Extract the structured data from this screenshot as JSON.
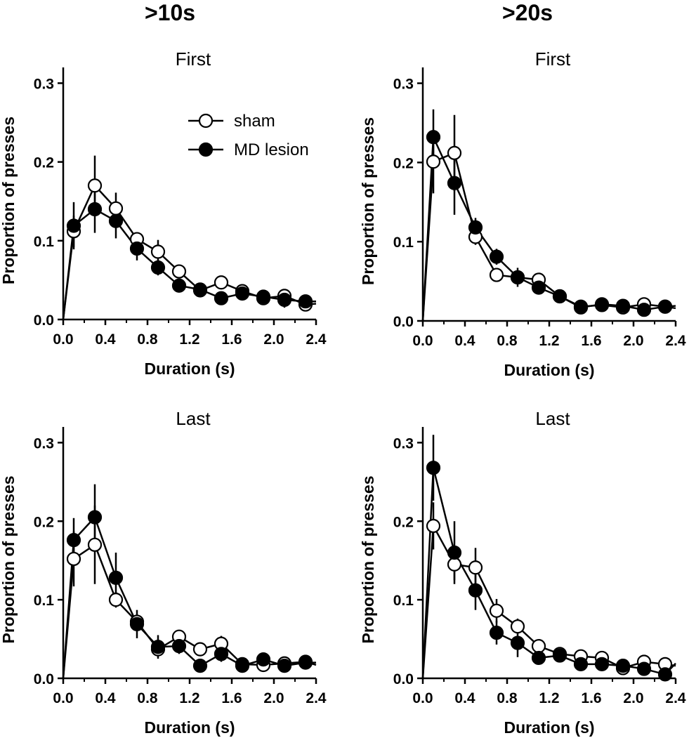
{
  "column_titles": [
    ">10s",
    ">20s"
  ],
  "legend": {
    "sham": "sham",
    "lesion": "MD lesion"
  },
  "chart_data": [
    {
      "type": "line",
      "column": ">10s",
      "title": "First",
      "xlabel": "Duration (s)",
      "ylabel": "Proportion of presses",
      "xlim": [
        0,
        2.4
      ],
      "ylim": [
        0,
        0.3
      ],
      "xticks": [
        "0.0",
        "0.4",
        "0.8",
        "1.2",
        "1.6",
        "2.0",
        "2.4"
      ],
      "yticks": [
        "0.0",
        "0.1",
        "0.2",
        "0.3"
      ],
      "x": [
        0.1,
        0.3,
        0.5,
        0.7,
        0.9,
        1.1,
        1.3,
        1.5,
        1.7,
        1.9,
        2.1,
        2.3
      ],
      "series": [
        {
          "name": "sham",
          "marker": "open",
          "values": [
            0.112,
            0.17,
            0.141,
            0.102,
            0.086,
            0.061,
            0.037,
            0.047,
            0.036,
            0.027,
            0.03,
            0.019
          ],
          "errors": [
            0.02,
            0.038,
            0.02,
            0.008,
            0.015,
            0.008,
            0.004,
            0.008,
            0.005,
            0.004,
            0.006,
            0.004
          ]
        },
        {
          "name": "MD lesion",
          "marker": "filled",
          "values": [
            0.119,
            0.14,
            0.125,
            0.09,
            0.066,
            0.043,
            0.038,
            0.027,
            0.033,
            0.029,
            0.025,
            0.023
          ],
          "errors": [
            0.03,
            0.03,
            0.022,
            0.015,
            0.01,
            0.006,
            0.004,
            0.004,
            0.005,
            0.004,
            0.01,
            0.004
          ]
        }
      ],
      "origin_point": [
        0,
        0
      ],
      "end_point": [
        2.4,
        0.02
      ]
    },
    {
      "type": "line",
      "column": ">20s",
      "title": "First",
      "xlabel": "Duration (s)",
      "ylabel": "Proportion of presses",
      "xlim": [
        0,
        2.4
      ],
      "ylim": [
        0,
        0.3
      ],
      "xticks": [
        "0.0",
        "0.4",
        "0.8",
        "1.2",
        "1.6",
        "2.0",
        "2.4"
      ],
      "yticks": [
        "0.0",
        "0.1",
        "0.2",
        "0.3"
      ],
      "x": [
        0.1,
        0.3,
        0.5,
        0.7,
        0.9,
        1.1,
        1.3,
        1.5,
        1.7,
        1.9,
        2.1,
        2.3
      ],
      "series": [
        {
          "name": "sham",
          "marker": "open",
          "values": [
            0.201,
            0.212,
            0.106,
            0.058,
            0.055,
            0.052,
            0.031,
            0.018,
            0.02,
            0.017,
            0.021,
            0.018
          ],
          "errors": [
            0.04,
            0.048,
            0.01,
            0.008,
            0.012,
            0.007,
            0.005,
            0.003,
            0.004,
            0.003,
            0.005,
            0.007
          ]
        },
        {
          "name": "MD lesion",
          "marker": "filled",
          "values": [
            0.232,
            0.174,
            0.118,
            0.081,
            0.055,
            0.042,
            0.031,
            0.017,
            0.021,
            0.019,
            0.014,
            0.018
          ],
          "errors": [
            0.035,
            0.04,
            0.012,
            0.01,
            0.008,
            0.006,
            0.004,
            0.003,
            0.004,
            0.003,
            0.004,
            0.008
          ]
        }
      ],
      "origin_point": [
        0,
        0
      ],
      "end_point": [
        2.4,
        0.016
      ]
    },
    {
      "type": "line",
      "column": ">10s",
      "title": "Last",
      "xlabel": "Duration (s)",
      "ylabel": "Proportion of presses",
      "xlim": [
        0,
        2.4
      ],
      "ylim": [
        0,
        0.3
      ],
      "xticks": [
        "0.0",
        "0.4",
        "0.8",
        "1.2",
        "1.6",
        "2.0",
        "2.4"
      ],
      "yticks": [
        "0.0",
        "0.1",
        "0.2",
        "0.3"
      ],
      "x": [
        0.1,
        0.3,
        0.5,
        0.7,
        0.9,
        1.1,
        1.3,
        1.5,
        1.7,
        1.9,
        2.1,
        2.3
      ],
      "series": [
        {
          "name": "sham",
          "marker": "open",
          "values": [
            0.152,
            0.17,
            0.1,
            0.072,
            0.037,
            0.053,
            0.037,
            0.044,
            0.018,
            0.017,
            0.019,
            0.021
          ],
          "errors": [
            0.035,
            0.05,
            0.01,
            0.008,
            0.006,
            0.008,
            0.006,
            0.01,
            0.004,
            0.003,
            0.004,
            0.004
          ]
        },
        {
          "name": "MD lesion",
          "marker": "filled",
          "values": [
            0.176,
            0.205,
            0.128,
            0.069,
            0.04,
            0.041,
            0.016,
            0.031,
            0.016,
            0.024,
            0.016,
            0.02
          ],
          "errors": [
            0.028,
            0.042,
            0.032,
            0.018,
            0.015,
            0.01,
            0.004,
            0.01,
            0.004,
            0.004,
            0.004,
            0.004
          ]
        }
      ],
      "origin_point": [
        0,
        0
      ],
      "end_point": [
        2.4,
        0.017
      ]
    },
    {
      "type": "line",
      "column": ">20s",
      "title": "Last",
      "xlabel": "Duration (s)",
      "ylabel": "Proportion of presses",
      "xlim": [
        0,
        2.4
      ],
      "ylim": [
        0,
        0.3
      ],
      "xticks": [
        "0.0",
        "0.4",
        "0.8",
        "1.2",
        "1.6",
        "2.0",
        "2.4"
      ],
      "yticks": [
        "0.0",
        "0.1",
        "0.2",
        "0.3"
      ],
      "x": [
        0.1,
        0.3,
        0.5,
        0.7,
        0.9,
        1.1,
        1.3,
        1.5,
        1.7,
        1.9,
        2.1,
        2.3
      ],
      "series": [
        {
          "name": "sham",
          "marker": "open",
          "values": [
            0.194,
            0.145,
            0.141,
            0.086,
            0.066,
            0.041,
            0.031,
            0.028,
            0.026,
            0.013,
            0.021,
            0.018
          ],
          "errors": [
            0.03,
            0.02,
            0.025,
            0.015,
            0.01,
            0.006,
            0.004,
            0.004,
            0.004,
            0.003,
            0.004,
            0.004
          ]
        },
        {
          "name": "MD lesion",
          "marker": "filled",
          "values": [
            0.268,
            0.16,
            0.112,
            0.058,
            0.045,
            0.026,
            0.029,
            0.018,
            0.018,
            0.016,
            0.012,
            0.005
          ],
          "errors": [
            0.042,
            0.04,
            0.025,
            0.015,
            0.018,
            0.006,
            0.008,
            0.004,
            0.004,
            0.003,
            0.004,
            0.003
          ]
        }
      ],
      "origin_point": [
        0,
        0
      ],
      "end_point": [
        2.4,
        0.016
      ]
    }
  ]
}
